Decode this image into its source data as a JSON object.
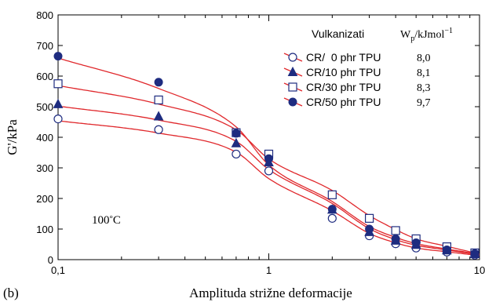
{
  "panel_label": "(b)",
  "chart_data": {
    "type": "scatter",
    "x_scale": "log",
    "xlim": [
      0.1,
      10
    ],
    "ylim": [
      0,
      800
    ],
    "xticks": [
      {
        "v": 0.1,
        "label": "0,1"
      },
      {
        "v": 1,
        "label": "1"
      },
      {
        "v": 10,
        "label": "10"
      }
    ],
    "yticks": [
      0,
      100,
      200,
      300,
      400,
      500,
      600,
      700,
      800
    ],
    "xlabel": "Amplituda strižne deformacije",
    "ylabel": "G'/kPa",
    "annotation": "100°C",
    "legend": {
      "position": "top-right",
      "title": "Vulkanizati",
      "value_header": "Wp/kJmol−1",
      "fit_line_color": "#e0282c",
      "marker_color": "#1e2c80"
    },
    "series": [
      {
        "name": "CR/  0 phr TPU",
        "wp": "8,0",
        "marker": "circle-open",
        "x": [
          0.1,
          0.3,
          0.7,
          1,
          2,
          3,
          4,
          5,
          7,
          9.5
        ],
        "y": [
          460,
          425,
          345,
          290,
          135,
          78,
          52,
          38,
          25,
          15
        ]
      },
      {
        "name": "CR/10 phr TPU",
        "wp": "8,1",
        "marker": "triangle-filled",
        "x": [
          0.1,
          0.3,
          0.7,
          1,
          2,
          3,
          4,
          5,
          7,
          9.5
        ],
        "y": [
          508,
          468,
          380,
          318,
          163,
          90,
          62,
          48,
          30,
          18
        ]
      },
      {
        "name": "CR/30 phr TPU",
        "wp": "8,3",
        "marker": "square-open",
        "x": [
          0.1,
          0.3,
          0.7,
          1,
          2,
          3,
          4,
          5,
          7,
          9.5
        ],
        "y": [
          575,
          522,
          415,
          345,
          212,
          135,
          95,
          68,
          42,
          22
        ]
      },
      {
        "name": "CR/50 phr TPU",
        "wp": "9,7",
        "marker": "circle-filled",
        "x": [
          0.1,
          0.3,
          0.7,
          1,
          2,
          3,
          4,
          5,
          7,
          9.5
        ],
        "y": [
          665,
          580,
          413,
          330,
          165,
          100,
          68,
          55,
          32,
          20
        ]
      }
    ]
  }
}
